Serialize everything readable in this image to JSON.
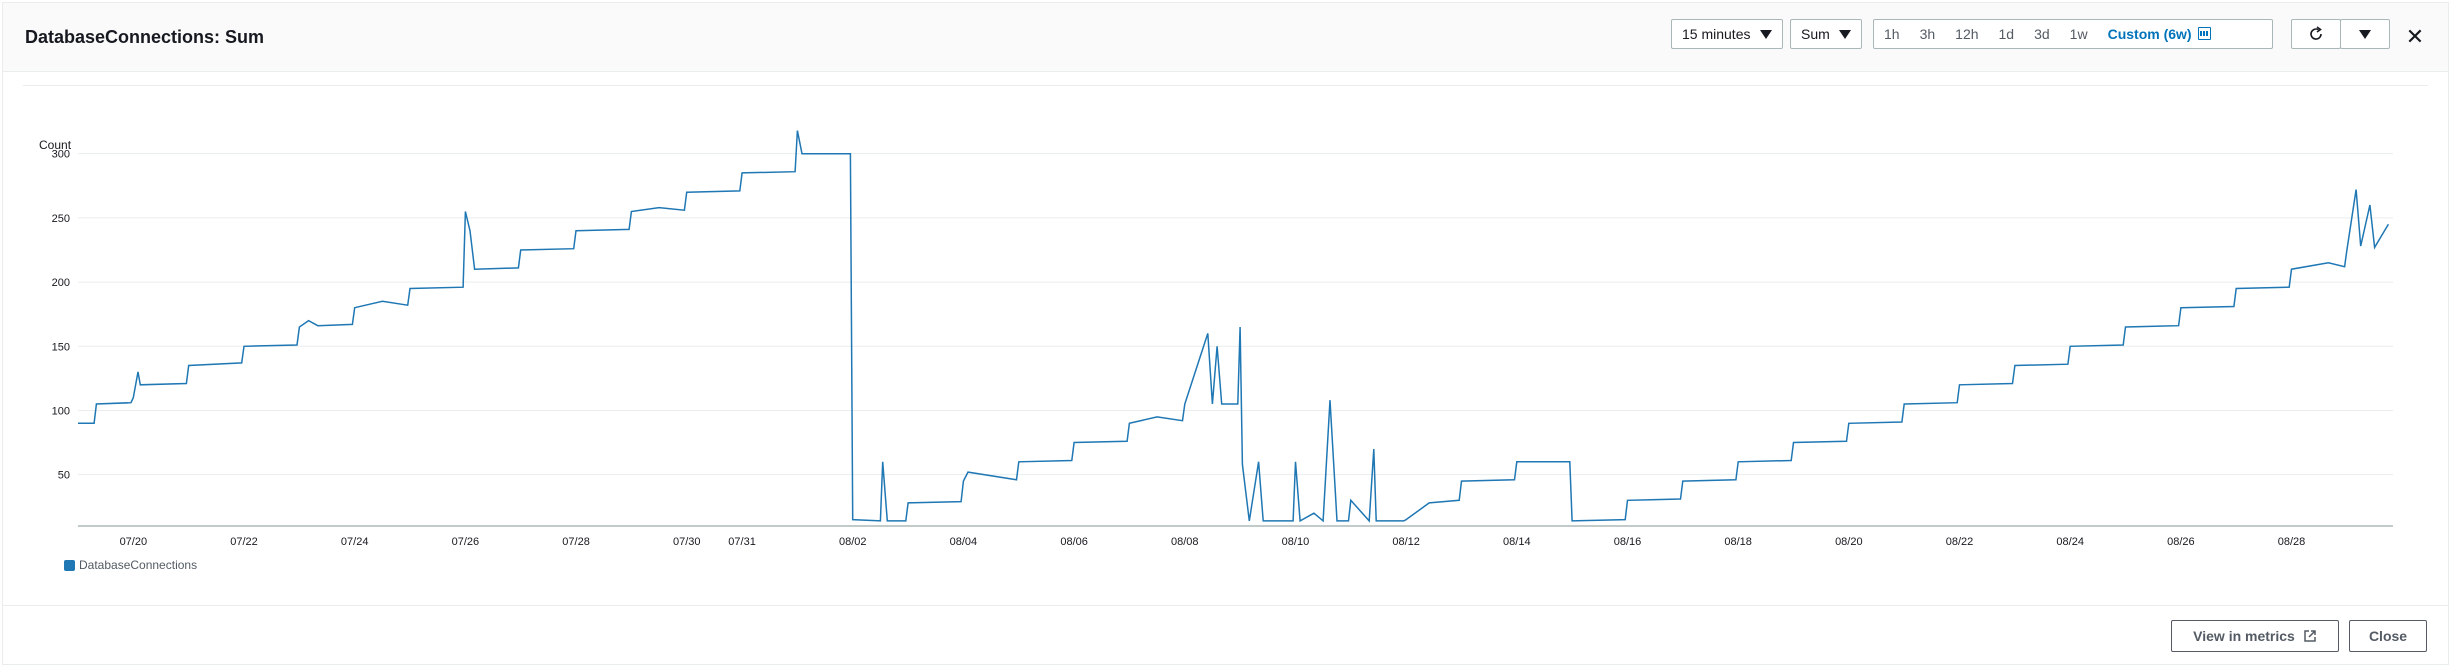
{
  "header": {
    "title": "DatabaseConnections: Sum",
    "period": "15 minutes",
    "statistic": "Sum",
    "time_ranges": [
      "1h",
      "3h",
      "12h",
      "1d",
      "3d",
      "1w"
    ],
    "custom_range": "Custom (6w)"
  },
  "icons": {
    "period_caret": "caret-down-icon",
    "stat_caret": "caret-down-icon",
    "calendar": "calendar-icon",
    "refresh": "refresh-icon",
    "refresh_menu": "caret-down-icon",
    "close": "close-icon",
    "external": "external-link-icon"
  },
  "footer": {
    "view_in_metrics": "View in metrics",
    "close": "Close"
  },
  "colors": {
    "series": "#1f77b4",
    "accent": "#0073bb"
  },
  "chart_data": {
    "type": "line",
    "ylabel": "Count",
    "y_ticks": [
      50,
      100,
      150,
      200,
      250,
      300
    ],
    "ylim": [
      10,
      320
    ],
    "x_ticks": [
      "07/20",
      "07/22",
      "07/24",
      "07/26",
      "07/28",
      "07/30",
      "07/31",
      "08/02",
      "08/04",
      "08/06",
      "08/08",
      "08/10",
      "08/12",
      "08/14",
      "08/16",
      "08/18",
      "08/20",
      "08/22",
      "08/24",
      "08/26",
      "08/28"
    ],
    "legend_position": "bottom-left",
    "grid": true,
    "series": [
      {
        "name": "DatabaseConnections",
        "points": [
          [
            "07/19 00:00",
            90
          ],
          [
            "07/19 07:00",
            90
          ],
          [
            "07/19 08:00",
            105
          ],
          [
            "07/19 23:00",
            106
          ],
          [
            "07/20 00:00",
            110
          ],
          [
            "07/20 02:00",
            130
          ],
          [
            "07/20 03:00",
            120
          ],
          [
            "07/20 23:00",
            121
          ],
          [
            "07/21 00:00",
            135
          ],
          [
            "07/21 23:00",
            137
          ],
          [
            "07/22 00:00",
            150
          ],
          [
            "07/22 23:00",
            151
          ],
          [
            "07/23 00:00",
            165
          ],
          [
            "07/23 04:00",
            170
          ],
          [
            "07/23 08:00",
            166
          ],
          [
            "07/23 23:00",
            167
          ],
          [
            "07/24 00:00",
            180
          ],
          [
            "07/24 12:00",
            185
          ],
          [
            "07/24 23:00",
            182
          ],
          [
            "07/25 00:00",
            195
          ],
          [
            "07/25 23:00",
            196
          ],
          [
            "07/26 00:00",
            255
          ],
          [
            "07/26 02:00",
            240
          ],
          [
            "07/26 04:00",
            210
          ],
          [
            "07/26 23:00",
            211
          ],
          [
            "07/27 00:00",
            225
          ],
          [
            "07/27 23:00",
            226
          ],
          [
            "07/28 00:00",
            240
          ],
          [
            "07/28 23:00",
            241
          ],
          [
            "07/29 00:00",
            255
          ],
          [
            "07/29 12:00",
            258
          ],
          [
            "07/29 23:00",
            256
          ],
          [
            "07/30 00:00",
            270
          ],
          [
            "07/30 23:00",
            271
          ],
          [
            "07/31 00:00",
            285
          ],
          [
            "07/31 23:00",
            286
          ],
          [
            "08/01 00:00",
            318
          ],
          [
            "08/01 02:00",
            300
          ],
          [
            "08/01 23:00",
            300
          ],
          [
            "08/02 00:00",
            15
          ],
          [
            "08/02 12:00",
            14
          ],
          [
            "08/02 13:00",
            60
          ],
          [
            "08/02 15:00",
            14
          ],
          [
            "08/02 23:00",
            14
          ],
          [
            "08/03 00:00",
            28
          ],
          [
            "08/03 23:00",
            29
          ],
          [
            "08/04 00:00",
            45
          ],
          [
            "08/04 02:00",
            52
          ],
          [
            "08/04 23:00",
            46
          ],
          [
            "08/05 00:00",
            60
          ],
          [
            "08/05 23:00",
            61
          ],
          [
            "08/06 00:00",
            75
          ],
          [
            "08/06 23:00",
            76
          ],
          [
            "08/07 00:00",
            90
          ],
          [
            "08/07 12:00",
            95
          ],
          [
            "08/07 23:00",
            92
          ],
          [
            "08/08 00:00",
            105
          ],
          [
            "08/08 10:00",
            160
          ],
          [
            "08/08 12:00",
            105
          ],
          [
            "08/08 14:00",
            150
          ],
          [
            "08/08 16:00",
            105
          ],
          [
            "08/08 23:00",
            105
          ],
          [
            "08/09 00:00",
            165
          ],
          [
            "08/09 01:00",
            58
          ],
          [
            "08/09 04:00",
            14
          ],
          [
            "08/09 08:00",
            60
          ],
          [
            "08/09 10:00",
            14
          ],
          [
            "08/09 23:00",
            14
          ],
          [
            "08/10 00:00",
            60
          ],
          [
            "08/10 02:00",
            14
          ],
          [
            "08/10 08:00",
            20
          ],
          [
            "08/10 12:00",
            14
          ],
          [
            "08/10 15:00",
            108
          ],
          [
            "08/10 18:00",
            14
          ],
          [
            "08/10 23:00",
            14
          ],
          [
            "08/11 00:00",
            30
          ],
          [
            "08/11 08:00",
            14
          ],
          [
            "08/11 10:00",
            70
          ],
          [
            "08/11 11:00",
            14
          ],
          [
            "08/11 23:00",
            14
          ],
          [
            "08/12 00:00",
            15
          ],
          [
            "08/12 10:00",
            28
          ],
          [
            "08/12 23:00",
            30
          ],
          [
            "08/13 00:00",
            45
          ],
          [
            "08/13 23:00",
            46
          ],
          [
            "08/14 00:00",
            60
          ],
          [
            "08/14 23:00",
            60
          ],
          [
            "08/15 00:00",
            14
          ],
          [
            "08/15 23:00",
            15
          ],
          [
            "08/16 00:00",
            30
          ],
          [
            "08/16 23:00",
            31
          ],
          [
            "08/17 00:00",
            45
          ],
          [
            "08/17 23:00",
            46
          ],
          [
            "08/18 00:00",
            60
          ],
          [
            "08/18 23:00",
            61
          ],
          [
            "08/19 00:00",
            75
          ],
          [
            "08/19 23:00",
            76
          ],
          [
            "08/20 00:00",
            90
          ],
          [
            "08/20 23:00",
            91
          ],
          [
            "08/21 00:00",
            105
          ],
          [
            "08/21 23:00",
            106
          ],
          [
            "08/22 00:00",
            120
          ],
          [
            "08/22 23:00",
            121
          ],
          [
            "08/23 00:00",
            135
          ],
          [
            "08/23 23:00",
            136
          ],
          [
            "08/24 00:00",
            150
          ],
          [
            "08/24 23:00",
            151
          ],
          [
            "08/25 00:00",
            165
          ],
          [
            "08/25 23:00",
            166
          ],
          [
            "08/26 00:00",
            180
          ],
          [
            "08/26 23:00",
            181
          ],
          [
            "08/27 00:00",
            195
          ],
          [
            "08/27 23:00",
            196
          ],
          [
            "08/28 00:00",
            210
          ],
          [
            "08/28 16:00",
            215
          ],
          [
            "08/28 23:00",
            212
          ],
          [
            "08/29 00:00",
            225
          ],
          [
            "08/29 04:00",
            272
          ],
          [
            "08/29 06:00",
            228
          ],
          [
            "08/29 10:00",
            260
          ],
          [
            "08/29 12:00",
            227
          ],
          [
            "08/29 18:00",
            245
          ]
        ]
      }
    ]
  }
}
